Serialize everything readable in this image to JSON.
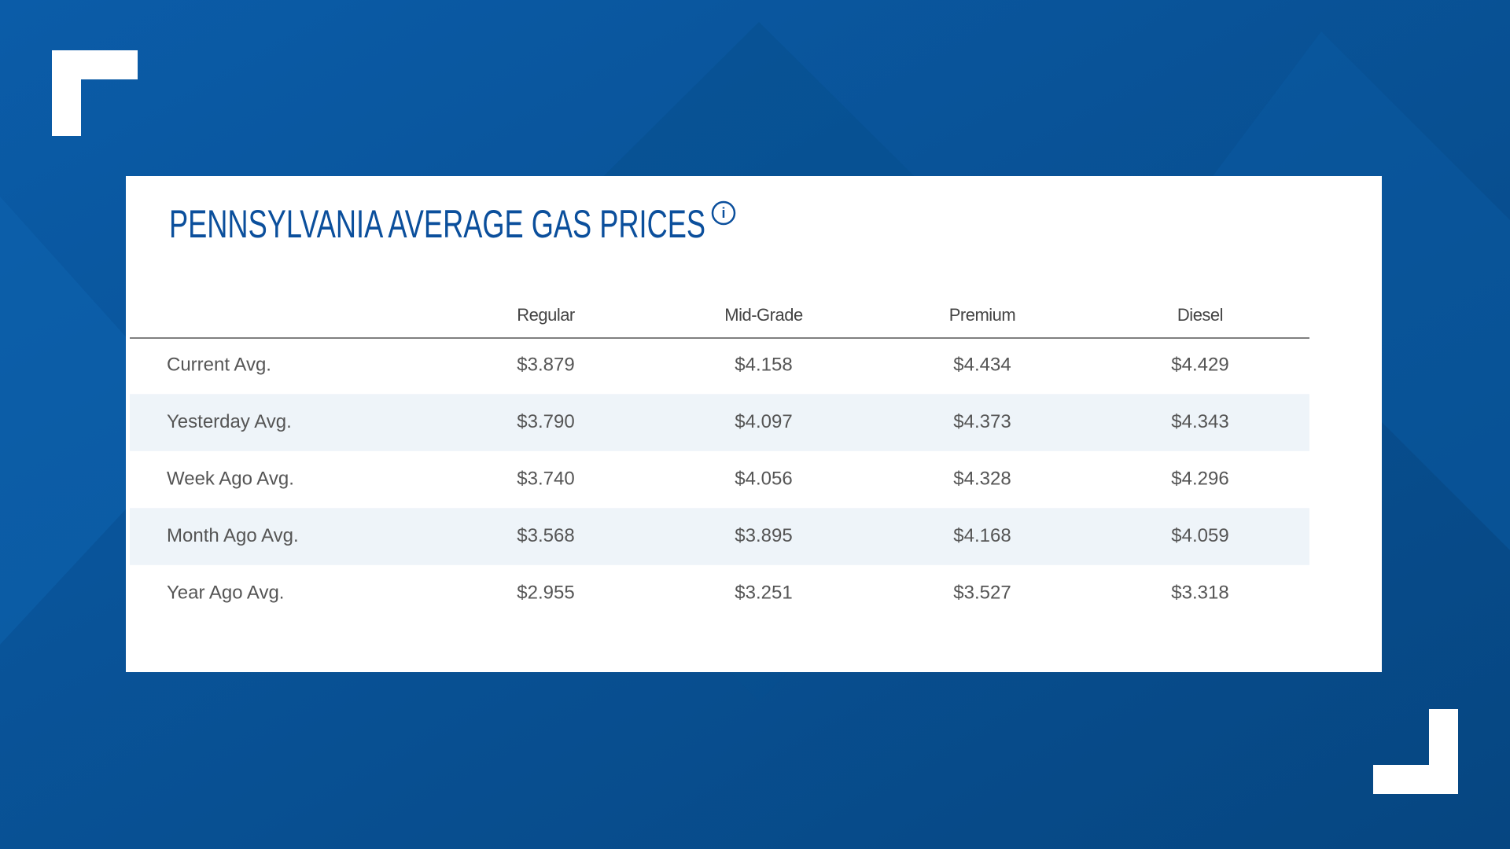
{
  "header": {
    "title": "PENNSYLVANIA AVERAGE GAS PRICES"
  },
  "table": {
    "columns": [
      "Regular",
      "Mid-Grade",
      "Premium",
      "Diesel"
    ],
    "rows": [
      [
        "Current Avg.",
        "$3.879",
        "$4.158",
        "$4.434",
        "$4.429"
      ],
      [
        "Yesterday Avg.",
        "$3.790",
        "$4.097",
        "$4.373",
        "$4.343"
      ],
      [
        "Week Ago Avg.",
        "$3.740",
        "$4.056",
        "$4.328",
        "$4.296"
      ],
      [
        "Month Ago Avg.",
        "$3.568",
        "$3.895",
        "$4.168",
        "$4.059"
      ],
      [
        "Year Ago Avg.",
        "$2.955",
        "$3.251",
        "$3.527",
        "$3.318"
      ]
    ]
  }
}
